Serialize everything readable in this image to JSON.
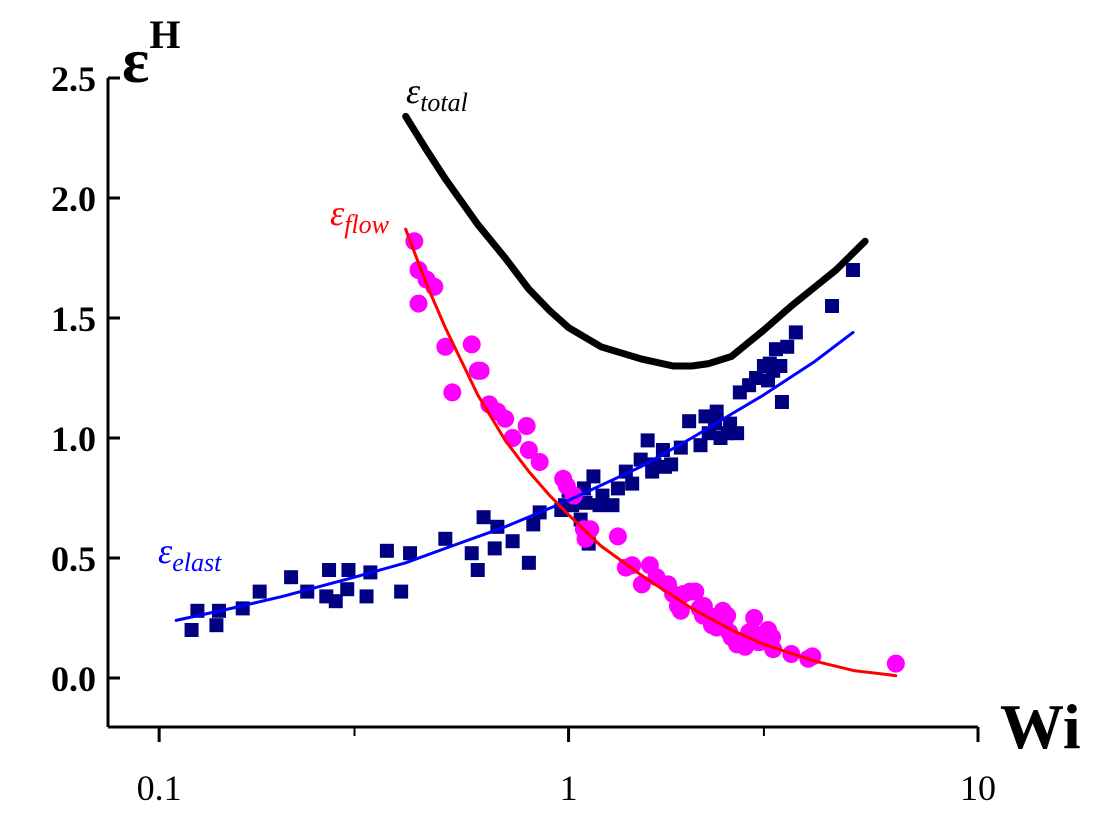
{
  "chart_data": {
    "type": "scatter",
    "xscale": "log",
    "xlim": [
      0.075,
      10
    ],
    "ylim": [
      -0.2,
      2.5
    ],
    "xticks": [
      0.1,
      1,
      10
    ],
    "xtick_labels": [
      "0.1",
      "1",
      "10"
    ],
    "xminor_ticks": [
      0.3,
      3
    ],
    "yticks": [
      0.0,
      0.5,
      1.0,
      1.5,
      2.0,
      2.5
    ],
    "ytick_labels": [
      "0.0",
      "0.5",
      "1.0",
      "1.5",
      "2.0",
      "2.5"
    ],
    "xlabel": "Wi",
    "ylabel": "ε",
    "ylabel_sup": "H",
    "colors": {
      "flow_points": "#ff00ff",
      "flow_fit": "#ff0000",
      "elast_points": "#000080",
      "elast_fit": "#0000ff",
      "total": "#000000",
      "axis": "#000000"
    },
    "series": [
      {
        "name": "flow_points",
        "label": "ε",
        "label_sub": "flow",
        "marker": "circle",
        "x": [
          0.42,
          0.43,
          0.45,
          0.47,
          0.43,
          0.5,
          0.52,
          0.58,
          0.61,
          0.6,
          0.64,
          0.67,
          0.7,
          0.73,
          0.79,
          0.8,
          0.85,
          0.97,
          0.99,
          1.03,
          1.09,
          1.1,
          1.13,
          1.32,
          1.38,
          1.43,
          1.51,
          1.58,
          1.64,
          1.75,
          1.8,
          1.85,
          1.88,
          1.91,
          1.98,
          2.04,
          2.09,
          2.13,
          2.14,
          2.2,
          2.24,
          2.3,
          2.38,
          2.4,
          2.44,
          2.47,
          2.5,
          2.58,
          2.7,
          2.76,
          2.84,
          2.88,
          2.9,
          2.93,
          3.07,
          3.14,
          3.16,
          3.5,
          3.85,
          3.94,
          6.3
        ],
        "y": [
          1.82,
          1.7,
          1.66,
          1.63,
          1.56,
          1.38,
          1.19,
          1.39,
          1.28,
          1.28,
          1.14,
          1.11,
          1.08,
          1.0,
          1.05,
          0.95,
          0.9,
          0.83,
          0.8,
          0.76,
          0.62,
          0.58,
          0.62,
          0.59,
          0.46,
          0.47,
          0.39,
          0.47,
          0.42,
          0.39,
          0.35,
          0.3,
          0.28,
          0.35,
          0.36,
          0.36,
          0.29,
          0.26,
          0.3,
          0.26,
          0.22,
          0.21,
          0.28,
          0.23,
          0.26,
          0.19,
          0.17,
          0.14,
          0.13,
          0.19,
          0.25,
          0.18,
          0.15,
          0.15,
          0.2,
          0.17,
          0.12,
          0.1,
          0.08,
          0.09,
          0.06
        ]
      },
      {
        "name": "elast_points",
        "label": "ε",
        "label_sub": "elast",
        "marker": "square",
        "x": [
          0.12,
          0.124,
          0.138,
          0.14,
          0.16,
          0.176,
          0.21,
          0.23,
          0.256,
          0.26,
          0.27,
          0.288,
          0.29,
          0.321,
          0.328,
          0.36,
          0.39,
          0.41,
          0.5,
          0.58,
          0.6,
          0.62,
          0.66,
          0.67,
          0.73,
          0.8,
          0.82,
          0.85,
          0.96,
          0.98,
          1.0,
          1.02,
          1.07,
          1.09,
          1.1,
          1.12,
          1.15,
          1.19,
          1.21,
          1.28,
          1.32,
          1.38,
          1.43,
          1.5,
          1.56,
          1.6,
          1.62,
          1.7,
          1.72,
          1.78,
          1.88,
          1.97,
          2.1,
          2.16,
          2.2,
          2.28,
          2.3,
          2.35,
          2.45,
          2.48,
          2.58,
          2.62,
          2.76,
          2.87,
          3.0,
          3.07,
          3.1,
          3.16,
          3.21,
          3.29,
          3.32,
          3.42,
          3.59,
          4.4,
          4.95
        ],
        "y": [
          0.2,
          0.28,
          0.22,
          0.28,
          0.29,
          0.36,
          0.42,
          0.36,
          0.34,
          0.45,
          0.32,
          0.37,
          0.45,
          0.34,
          0.44,
          0.53,
          0.36,
          0.52,
          0.58,
          0.52,
          0.45,
          0.67,
          0.54,
          0.63,
          0.57,
          0.48,
          0.64,
          0.69,
          0.7,
          0.72,
          0.78,
          0.72,
          0.66,
          0.79,
          0.73,
          0.56,
          0.84,
          0.72,
          0.76,
          0.72,
          0.79,
          0.86,
          0.81,
          0.91,
          0.99,
          0.86,
          0.89,
          0.95,
          0.88,
          0.89,
          0.96,
          1.07,
          0.97,
          1.09,
          1.02,
          1.06,
          1.11,
          1.0,
          1.02,
          1.06,
          1.02,
          1.19,
          1.22,
          1.25,
          1.3,
          1.24,
          1.31,
          1.28,
          1.37,
          1.3,
          1.15,
          1.38,
          1.44,
          1.55,
          1.7
        ]
      },
      {
        "name": "flow_fit",
        "style": "line",
        "x": [
          0.4,
          0.45,
          0.5,
          0.6,
          0.7,
          0.8,
          0.9,
          1.0,
          1.2,
          1.5,
          2.0,
          2.5,
          3.0,
          4.0,
          5.0,
          6.3
        ],
        "y": [
          1.87,
          1.64,
          1.46,
          1.18,
          0.99,
          0.86,
          0.76,
          0.68,
          0.55,
          0.43,
          0.29,
          0.2,
          0.14,
          0.07,
          0.03,
          0.01
        ]
      },
      {
        "name": "elast_fit",
        "style": "line",
        "x": [
          0.11,
          0.15,
          0.2,
          0.3,
          0.4,
          0.5,
          0.7,
          1.0,
          1.5,
          2.0,
          2.5,
          3.0,
          4.0,
          4.95
        ],
        "y": [
          0.24,
          0.29,
          0.34,
          0.42,
          0.48,
          0.54,
          0.63,
          0.74,
          0.88,
          1.0,
          1.1,
          1.18,
          1.32,
          1.44
        ]
      },
      {
        "name": "total",
        "label": "ε",
        "label_sub": "total",
        "style": "line",
        "x": [
          0.4,
          0.45,
          0.5,
          0.6,
          0.7,
          0.8,
          0.9,
          1.0,
          1.2,
          1.5,
          1.8,
          2.0,
          2.2,
          2.5,
          3.0,
          3.5,
          4.0,
          4.5,
          5.3
        ],
        "y": [
          2.34,
          2.2,
          2.08,
          1.89,
          1.75,
          1.62,
          1.53,
          1.46,
          1.38,
          1.33,
          1.3,
          1.3,
          1.31,
          1.34,
          1.45,
          1.55,
          1.63,
          1.7,
          1.82
        ]
      }
    ],
    "labels": {
      "total": {
        "main": "ε",
        "sub": "total"
      },
      "flow": {
        "main": "ε",
        "sub": "flow"
      },
      "elast": {
        "main": "ε",
        "sub": "elast"
      }
    }
  }
}
